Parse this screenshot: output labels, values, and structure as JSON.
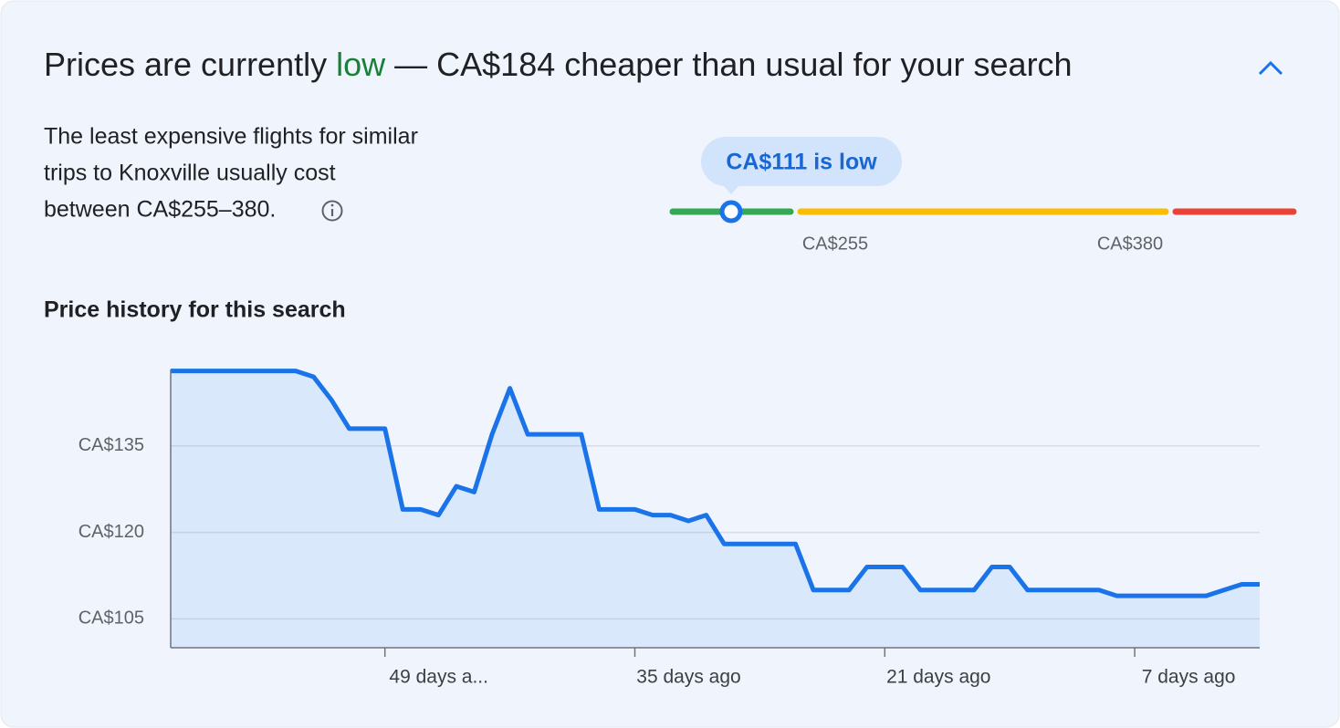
{
  "header": {
    "title_parts": [
      "Prices are currently ",
      "low",
      " — CA$184 cheaper than usual for your search"
    ]
  },
  "summary": {
    "lines": [
      "The least expensive flights for similar",
      "trips to Knoxville usually cost",
      "between CA$255–380."
    ]
  },
  "price_gauge": {
    "marker_label": "CA$111 is low",
    "tick_labels": [
      "CA$255",
      "CA$380"
    ]
  },
  "chart_data": {
    "type": "area",
    "title": "Price history for this search",
    "x": [
      61,
      60,
      59,
      58,
      57,
      56,
      55,
      54,
      53,
      52,
      51,
      50,
      49,
      48,
      47,
      46,
      45,
      44,
      43,
      42,
      41,
      40,
      39,
      38,
      37,
      36,
      35,
      34,
      33,
      32,
      31,
      30,
      29,
      28,
      27,
      26,
      25,
      24,
      23,
      22,
      21,
      20,
      19,
      18,
      17,
      16,
      15,
      14,
      13,
      12,
      11,
      10,
      9,
      8,
      7,
      6,
      5,
      4,
      3,
      2,
      1,
      0
    ],
    "series": [
      {
        "color": "#1a73e8",
        "values": [
          148,
          148,
          148,
          148,
          148,
          148,
          148,
          148,
          147,
          143,
          138,
          138,
          138,
          124,
          124,
          123,
          128,
          127,
          137,
          145,
          137,
          137,
          137,
          137,
          124,
          124,
          124,
          123,
          123,
          122,
          123,
          118,
          118,
          118,
          118,
          118,
          110,
          110,
          110,
          114,
          114,
          114,
          110,
          110,
          110,
          110,
          114,
          114,
          110,
          110,
          110,
          110,
          110,
          109,
          109,
          109,
          109,
          109,
          109,
          110,
          111,
          111
        ]
      }
    ],
    "xlim": [
      61,
      0
    ],
    "xticks": [
      {
        "value": 49,
        "label": "49 days a..."
      },
      {
        "value": 35,
        "label": "35 days ago"
      },
      {
        "value": 21,
        "label": "21 days ago"
      },
      {
        "value": 7,
        "label": "7 days ago"
      }
    ],
    "ylim": [
      100,
      150
    ],
    "yticks": [
      {
        "value": 105,
        "label": "CA$105"
      },
      {
        "value": 120,
        "label": "CA$120"
      },
      {
        "value": 135,
        "label": "CA$135"
      }
    ],
    "grid": true
  }
}
